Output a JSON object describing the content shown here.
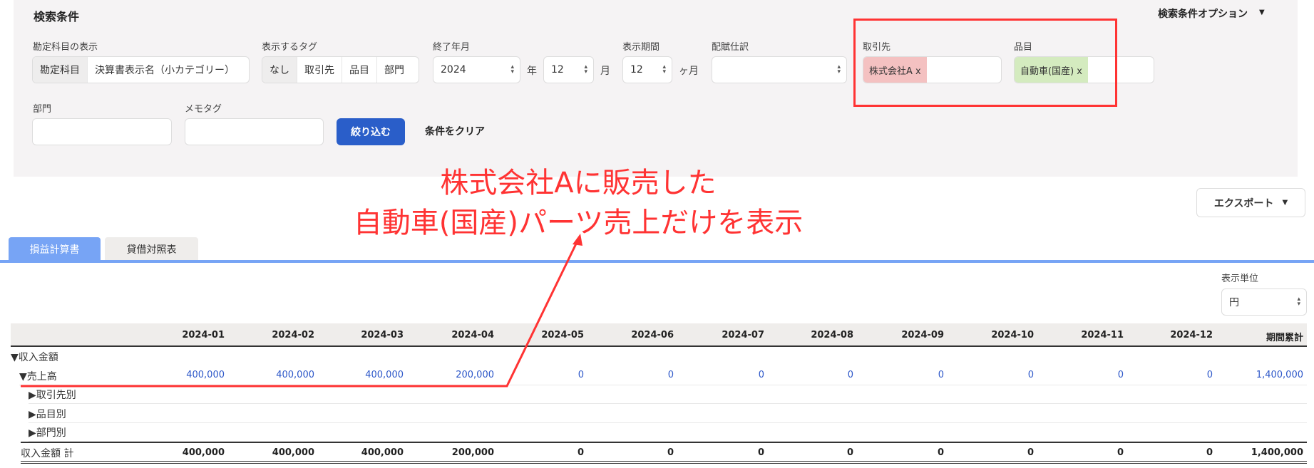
{
  "search": {
    "title": "検索条件",
    "options_label": "検索条件オプション",
    "account_display": {
      "label": "勘定科目の表示",
      "options": [
        "勘定科目",
        "決算書表示名（小カテゴリー）"
      ]
    },
    "tags": {
      "label": "表示するタグ",
      "options": [
        "なし",
        "取引先",
        "品目",
        "部門"
      ]
    },
    "end": {
      "label": "終了年月",
      "year": "2024",
      "year_unit": "年",
      "month": "12",
      "month_unit": "月"
    },
    "period": {
      "label": "表示期間",
      "value": "12",
      "unit": "ヶ月"
    },
    "allocation": {
      "label": "配賦仕訳",
      "value": ""
    },
    "partner": {
      "label": "取引先",
      "chip": "株式会社A x",
      "chip_color": "#f4c1c1"
    },
    "item": {
      "label": "品目",
      "chip": "自動車(国産) x",
      "chip_color": "#d4ebbf"
    },
    "department": {
      "label": "部門",
      "value": ""
    },
    "memo": {
      "label": "メモタグ",
      "value": ""
    },
    "apply": "絞り込む",
    "clear": "条件をクリア"
  },
  "annotation": {
    "line1": "株式会社Aに販売した",
    "line2": "自動車(国産)パーツ売上だけを表示",
    "color": "#ff3333"
  },
  "export": "エクスポート",
  "tabs": [
    {
      "label": "損益計算書",
      "active": true
    },
    {
      "label": "貸借対照表",
      "active": false
    }
  ],
  "unit": {
    "label": "表示単位",
    "value": "円"
  },
  "table": {
    "columns": [
      "2024-01",
      "2024-02",
      "2024-03",
      "2024-04",
      "2024-05",
      "2024-06",
      "2024-07",
      "2024-08",
      "2024-09",
      "2024-10",
      "2024-11",
      "2024-12",
      "期間累計"
    ],
    "rows": [
      {
        "label": "▼収入金額",
        "values": []
      },
      {
        "label": "▼売上高",
        "values": [
          "400,000",
          "400,000",
          "400,000",
          "200,000",
          "0",
          "0",
          "0",
          "0",
          "0",
          "0",
          "0",
          "0",
          "1,400,000"
        ]
      },
      {
        "label": "▶取引先別",
        "values": []
      },
      {
        "label": "▶品目別",
        "values": []
      },
      {
        "label": "▶部門別",
        "values": []
      },
      {
        "label": "収入金額 計",
        "values": [
          "400,000",
          "400,000",
          "400,000",
          "200,000",
          "0",
          "0",
          "0",
          "0",
          "0",
          "0",
          "0",
          "0",
          "1,400,000"
        ]
      }
    ]
  }
}
